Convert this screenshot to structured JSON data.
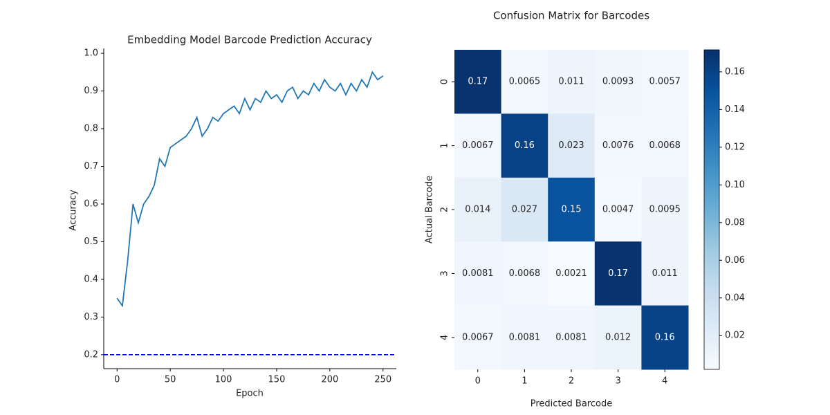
{
  "chart_data": [
    {
      "type": "line",
      "title": "Embedding Model Barcode Prediction Accuracy",
      "xlabel": "Epoch",
      "ylabel": "Accuracy",
      "x": [
        0,
        5,
        10,
        15,
        20,
        25,
        30,
        35,
        40,
        45,
        50,
        55,
        60,
        65,
        70,
        75,
        80,
        85,
        90,
        95,
        100,
        105,
        110,
        115,
        120,
        125,
        130,
        135,
        140,
        145,
        150,
        155,
        160,
        165,
        170,
        175,
        180,
        185,
        190,
        195,
        200,
        205,
        210,
        215,
        220,
        225,
        230,
        235,
        240,
        245,
        250
      ],
      "series": [
        {
          "name": "Accuracy",
          "color": "#1f77b4",
          "values": [
            0.35,
            0.33,
            0.45,
            0.6,
            0.55,
            0.6,
            0.62,
            0.65,
            0.72,
            0.7,
            0.75,
            0.76,
            0.77,
            0.78,
            0.8,
            0.83,
            0.78,
            0.8,
            0.83,
            0.82,
            0.84,
            0.85,
            0.86,
            0.84,
            0.88,
            0.85,
            0.88,
            0.87,
            0.9,
            0.88,
            0.89,
            0.87,
            0.9,
            0.91,
            0.88,
            0.9,
            0.89,
            0.92,
            0.9,
            0.93,
            0.91,
            0.9,
            0.92,
            0.89,
            0.92,
            0.9,
            0.93,
            0.91,
            0.95,
            0.93,
            0.94
          ]
        }
      ],
      "hline": {
        "value": 0.2,
        "color": "#0000ff"
      },
      "xlim": [
        -12.5,
        262.5
      ],
      "xticks": [
        0,
        50,
        100,
        150,
        200,
        250
      ],
      "ylim": [
        0.163,
        1.013
      ],
      "yticks": [
        0.2,
        0.3,
        0.4,
        0.5,
        0.6,
        0.7,
        0.8,
        0.9,
        {
          "value": 1.0,
          "label": "1.0"
        }
      ]
    },
    {
      "type": "heatmap",
      "title": "Confusion Matrix for Barcodes",
      "xlabel": "Predicted Barcode",
      "ylabel": "Actual Barcode",
      "categories": [
        "0",
        "1",
        "2",
        "3",
        "4"
      ],
      "row_categories": [
        "0",
        "1",
        "2",
        "3",
        "4"
      ],
      "values": [
        [
          0.17,
          0.0065,
          0.011,
          0.0093,
          0.0057
        ],
        [
          0.0067,
          0.16,
          0.023,
          0.0076,
          0.0068
        ],
        [
          0.014,
          0.027,
          0.15,
          0.0047,
          0.0095
        ],
        [
          0.0081,
          0.0068,
          0.0021,
          0.17,
          0.011
        ],
        [
          0.0067,
          0.0081,
          0.0081,
          0.012,
          0.16
        ]
      ],
      "colormap": [
        "#f7fbff",
        "#deebf7",
        "#c6dbef",
        "#9ecae1",
        "#6baed6",
        "#4292c6",
        "#2171b5",
        "#08519c",
        "#08306b"
      ],
      "clim": [
        0.0021,
        0.1717
      ],
      "cticks": [
        0.02,
        0.04,
        0.06,
        0.08,
        {
          "value": 0.1,
          "label": "0.10"
        },
        0.12,
        0.14,
        0.16
      ]
    }
  ]
}
